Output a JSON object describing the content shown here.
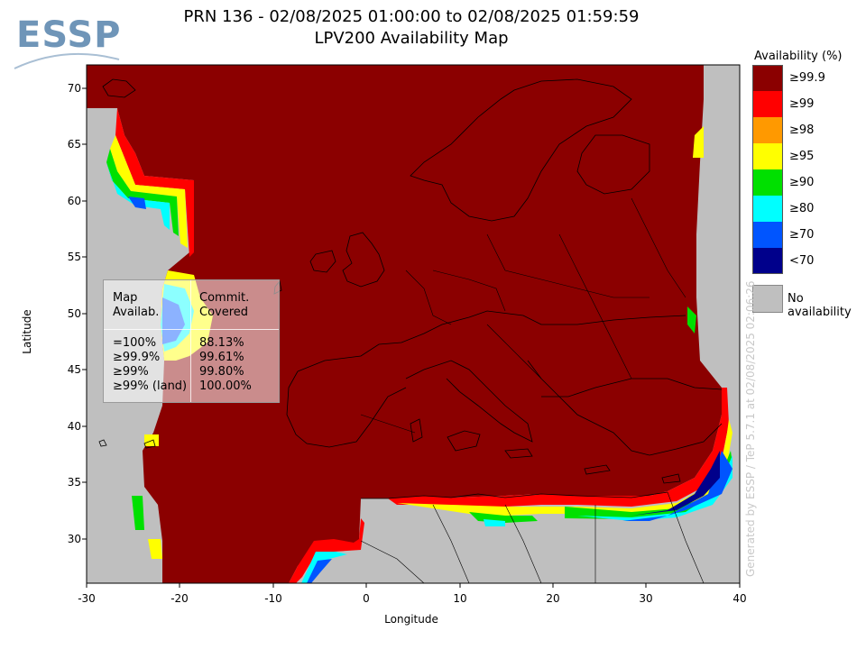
{
  "title_line1": "PRN 136 - 02/08/2025 01:00:00 to 02/08/2025 01:59:59",
  "title_line2": "LPV200 Availability Map",
  "logo_text": "ESSP",
  "axes": {
    "xlabel": "Longitude",
    "ylabel": "Latitude",
    "xticks": [
      "-30",
      "-20",
      "-10",
      "0",
      "10",
      "20",
      "30",
      "40"
    ],
    "yticks": [
      "70",
      "65",
      "60",
      "55",
      "50",
      "45",
      "40",
      "35",
      "30"
    ],
    "xlim": [
      -30,
      40
    ],
    "ylim": [
      26,
      72
    ]
  },
  "stats_box": {
    "header_left": "Map\nAvailab.",
    "header_right": "Commit.\nCovered",
    "rows_left": "=100%\n≥99.9%\n≥99%\n≥99% (land)",
    "rows_right": "88.13%\n99.61%\n99.80%\n100.00%"
  },
  "legend": {
    "title": "Availability (%)",
    "items": [
      {
        "label": "≥99.9",
        "color": "#8b0000"
      },
      {
        "label": "≥99",
        "color": "#ff0000"
      },
      {
        "label": "≥98",
        "color": "#ff9900"
      },
      {
        "label": "≥95",
        "color": "#ffff00"
      },
      {
        "label": "≥90",
        "color": "#00e000"
      },
      {
        "label": "≥80",
        "color": "#00ffff"
      },
      {
        "label": "≥70",
        "color": "#0055ff"
      },
      {
        "label": "<70",
        "color": "#00008b"
      }
    ],
    "no_availability": "No availability",
    "no_availability_color": "#bfbfbf"
  },
  "watermark": "Generated by ESSP / TeP 5.7.1 at 02/08/2025 02:06:26"
}
